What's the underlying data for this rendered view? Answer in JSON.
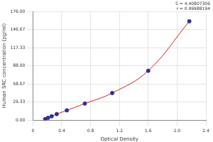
{
  "chart_data": {
    "type": "scatter",
    "x_label": "Optical Density",
    "y_label": "Human SRC concentration (pg/ml)",
    "annotations": [
      "S = 4.40807306",
      "r = 0.99988194"
    ],
    "x": [
      0.17,
      0.21,
      0.26,
      0.33,
      0.47,
      0.72,
      1.1,
      1.6,
      2.17
    ],
    "values": [
      2,
      4,
      6.5,
      10,
      16,
      27,
      44,
      80,
      160
    ],
    "color": "#2e2e9e",
    "marker": "circle",
    "line_style": "solid",
    "xlim": [
      0,
      2.4
    ],
    "xticks": [
      0,
      0.4,
      0.8,
      1.2,
      1.6,
      {
        "value": 2,
        "label": "2.0"
      },
      2.4
    ],
    "ylim": [
      0,
      176
    ],
    "yticks": [
      {
        "value": 0,
        "label": "0.00"
      },
      29.33,
      58.67,
      {
        "value": 88,
        "label": "88.00"
      },
      117.33,
      146.67,
      {
        "value": 176,
        "label": "176.00"
      }
    ],
    "grid": true
  }
}
